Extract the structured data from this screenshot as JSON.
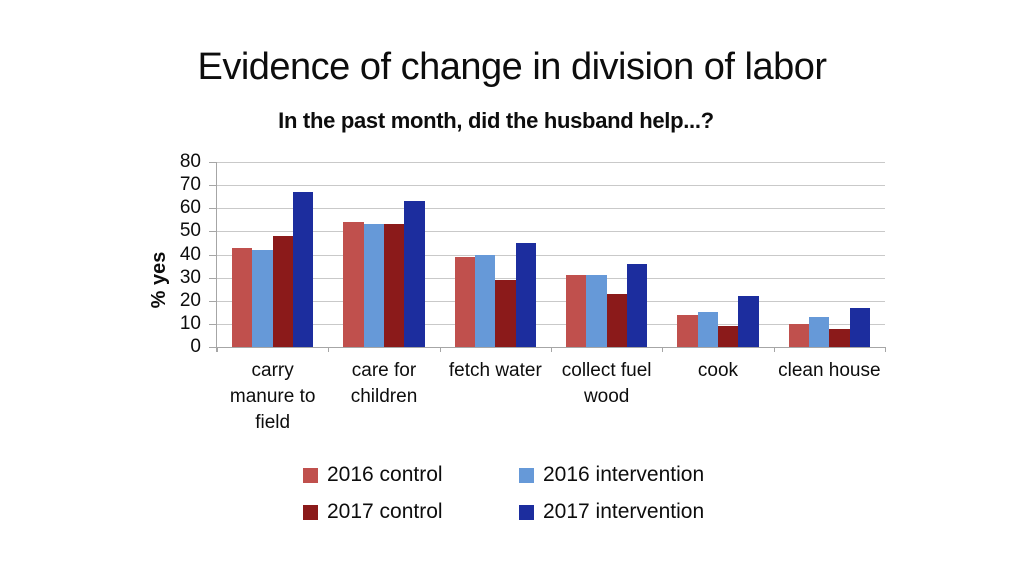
{
  "slide": {
    "title": "Evidence of change in division of labor"
  },
  "chart_data": {
    "type": "bar",
    "title": "In the past month, did the husband help...?",
    "xlabel": "",
    "ylabel": "% yes",
    "ylim": [
      0,
      80
    ],
    "ytick_step": 10,
    "grid": true,
    "legend_position": "bottom",
    "categories": [
      "carry manure to field",
      "care for children",
      "fetch water",
      "collect fuel wood",
      "cook",
      "clean house"
    ],
    "category_lines": [
      [
        "carry",
        "manure to",
        "field"
      ],
      [
        "care for",
        "children"
      ],
      [
        "fetch water"
      ],
      [
        "collect fuel",
        "wood"
      ],
      [
        "cook"
      ],
      [
        "clean house"
      ]
    ],
    "series": [
      {
        "name": "2016 control",
        "color": "#C0504D",
        "values": [
          43,
          54,
          39,
          31,
          14,
          10
        ]
      },
      {
        "name": "2016 intervention",
        "color": "#6699D8",
        "values": [
          42,
          53,
          40,
          31,
          15,
          13
        ]
      },
      {
        "name": "2017 control",
        "color": "#8B1A1A",
        "values": [
          48,
          53,
          29,
          23,
          9,
          8
        ]
      },
      {
        "name": "2017 intervention",
        "color": "#1C2D9E",
        "values": [
          67,
          63,
          45,
          36,
          22,
          17
        ]
      }
    ],
    "colors": {
      "gridline": "#c9c9c9",
      "axis": "#a6a6a6",
      "text": "#0d0d0d"
    }
  }
}
